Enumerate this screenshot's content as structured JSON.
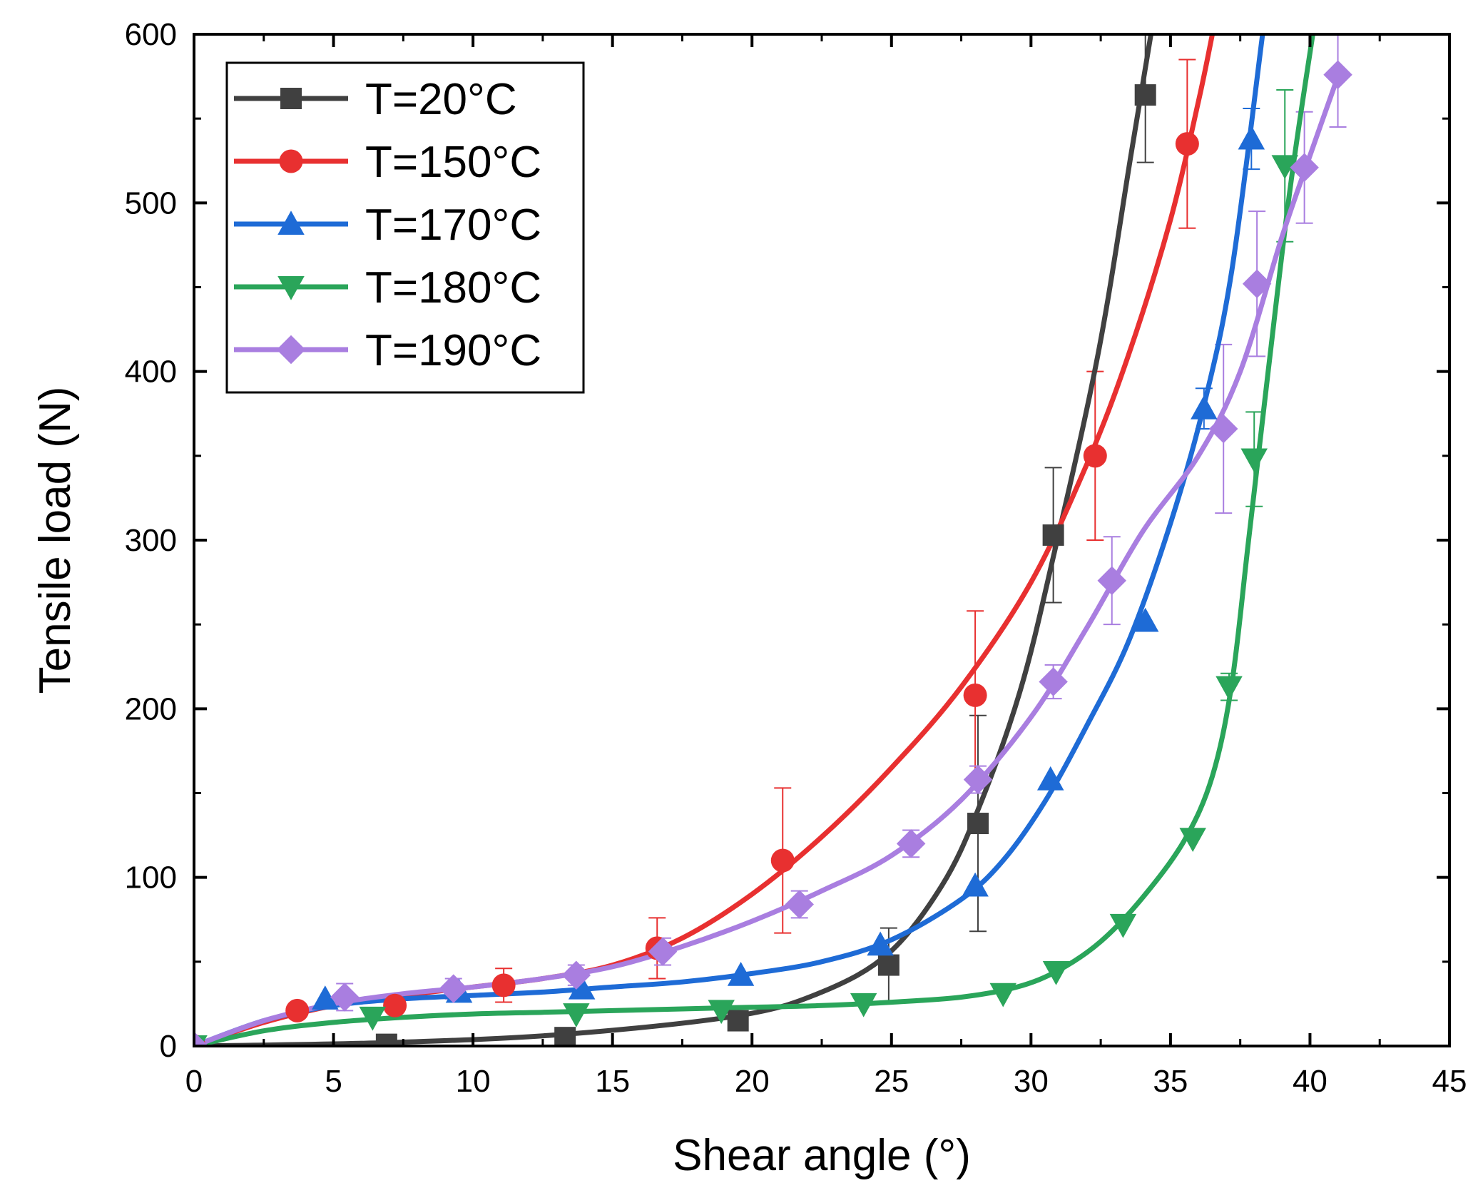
{
  "chart_data": {
    "type": "line",
    "xlabel": "Shear angle (°)",
    "ylabel": "Tensile load (N)",
    "xlim": [
      0,
      45
    ],
    "ylim": [
      0,
      600
    ],
    "xticks": [
      "0",
      "5",
      "10",
      "15",
      "20",
      "25",
      "30",
      "35",
      "40",
      "45"
    ],
    "yticks": [
      "0",
      "100",
      "200",
      "300",
      "400",
      "500",
      "600"
    ],
    "grid": false,
    "legend_position": "top-left",
    "series": [
      {
        "name": "T=20°C",
        "color": "#404040",
        "marker": "square",
        "x": [
          0,
          6.9,
          13.3,
          19.5,
          24.9,
          28.1,
          30.8,
          34.1
        ],
        "y": [
          0,
          1,
          5,
          15,
          48,
          132,
          303,
          564
        ],
        "err": [
          0,
          0,
          0,
          0,
          22,
          64,
          40,
          40
        ],
        "fit_x": [
          0,
          6.9,
          13.3,
          19.5,
          22.5,
          24.9,
          26.8,
          28.1,
          29.6,
          30.8,
          32.4,
          33.6,
          34.3
        ],
        "fit_y": [
          0,
          2,
          7,
          18,
          32,
          55,
          95,
          140,
          210,
          290,
          410,
          530,
          600
        ]
      },
      {
        "name": "T=150°C",
        "color": "#e83030",
        "marker": "circle",
        "x": [
          0,
          3.7,
          7.2,
          11.1,
          16.6,
          21.1,
          28.0,
          32.3,
          35.6
        ],
        "y": [
          0,
          21,
          24,
          36,
          58,
          110,
          208,
          350,
          535
        ],
        "err": [
          0,
          0,
          0,
          10,
          18,
          43,
          50,
          50,
          50
        ],
        "fit_x": [
          0,
          2.5,
          5,
          7.5,
          10,
          12.5,
          15,
          17.5,
          20,
          22.5,
          25,
          27.5,
          30,
          32,
          33.5,
          35,
          36,
          36.5
        ],
        "fit_y": [
          0,
          14,
          24,
          30,
          35,
          40,
          48,
          64,
          90,
          124,
          165,
          213,
          275,
          345,
          410,
          490,
          560,
          600
        ]
      },
      {
        "name": "T=170°C",
        "color": "#1e6bd6",
        "marker": "triangle-up",
        "x": [
          0,
          4.7,
          9.5,
          13.9,
          19.6,
          24.6,
          28.0,
          30.7,
          34.1,
          36.2,
          37.9
        ],
        "y": [
          0,
          28,
          32,
          34,
          42,
          60,
          95,
          158,
          252,
          378,
          538
        ],
        "err": [
          0,
          0,
          0,
          0,
          0,
          0,
          0,
          0,
          0,
          12,
          18
        ],
        "fit_x": [
          0,
          2.5,
          5,
          7.5,
          10,
          12.5,
          15,
          17.5,
          20,
          22.5,
          25,
          27.5,
          29,
          30.5,
          32,
          33.5,
          35,
          36.2,
          37.2,
          38.3
        ],
        "fit_y": [
          0,
          15,
          24,
          28,
          30,
          32,
          35,
          38,
          43,
          50,
          63,
          87,
          110,
          145,
          190,
          240,
          310,
          380,
          460,
          600
        ]
      },
      {
        "name": "T=180°C",
        "color": "#2aa55a",
        "marker": "triangle-down",
        "x": [
          0,
          6.4,
          13.7,
          18.9,
          24.0,
          29.0,
          30.9,
          33.3,
          35.8,
          37.1,
          38.0,
          39.1
        ],
        "y": [
          0,
          17,
          19,
          21,
          25,
          31,
          44,
          72,
          123,
          213,
          348,
          522
        ],
        "err": [
          0,
          0,
          0,
          0,
          0,
          0,
          0,
          0,
          0,
          8,
          28,
          45
        ],
        "fit_x": [
          0,
          2.5,
          5,
          7.5,
          10,
          12.5,
          15,
          17.5,
          20,
          22.5,
          25,
          27.5,
          29.5,
          31,
          32.5,
          34,
          35.5,
          36.5,
          37.2,
          37.8,
          38.5,
          39.3,
          40.1
        ],
        "fit_y": [
          0,
          9,
          14,
          17,
          19,
          20,
          21,
          22,
          23,
          24,
          26,
          29,
          35,
          45,
          62,
          88,
          122,
          160,
          215,
          300,
          400,
          510,
          600
        ]
      },
      {
        "name": "T=190°C",
        "color": "#a97ee0",
        "marker": "diamond",
        "x": [
          0,
          5.4,
          9.3,
          13.7,
          16.8,
          21.7,
          25.7,
          28.1,
          30.8,
          32.9,
          36.9,
          38.1,
          39.8,
          41.0
        ],
        "y": [
          0,
          29,
          34,
          42,
          56,
          84,
          120,
          158,
          216,
          276,
          366,
          452,
          521,
          576
        ],
        "err": [
          0,
          8,
          6,
          6,
          8,
          8,
          8,
          8,
          10,
          26,
          50,
          43,
          33,
          31
        ],
        "fit_x": [
          0,
          2.5,
          5,
          7.5,
          10,
          12.5,
          15,
          17.5,
          20,
          22.5,
          25,
          27.5,
          30,
          32,
          34,
          36,
          37.5,
          39,
          40,
          41
        ],
        "fit_y": [
          0,
          15,
          25,
          31,
          35,
          40,
          47,
          59,
          74,
          92,
          113,
          146,
          195,
          248,
          305,
          350,
          400,
          480,
          528,
          575
        ]
      }
    ]
  }
}
